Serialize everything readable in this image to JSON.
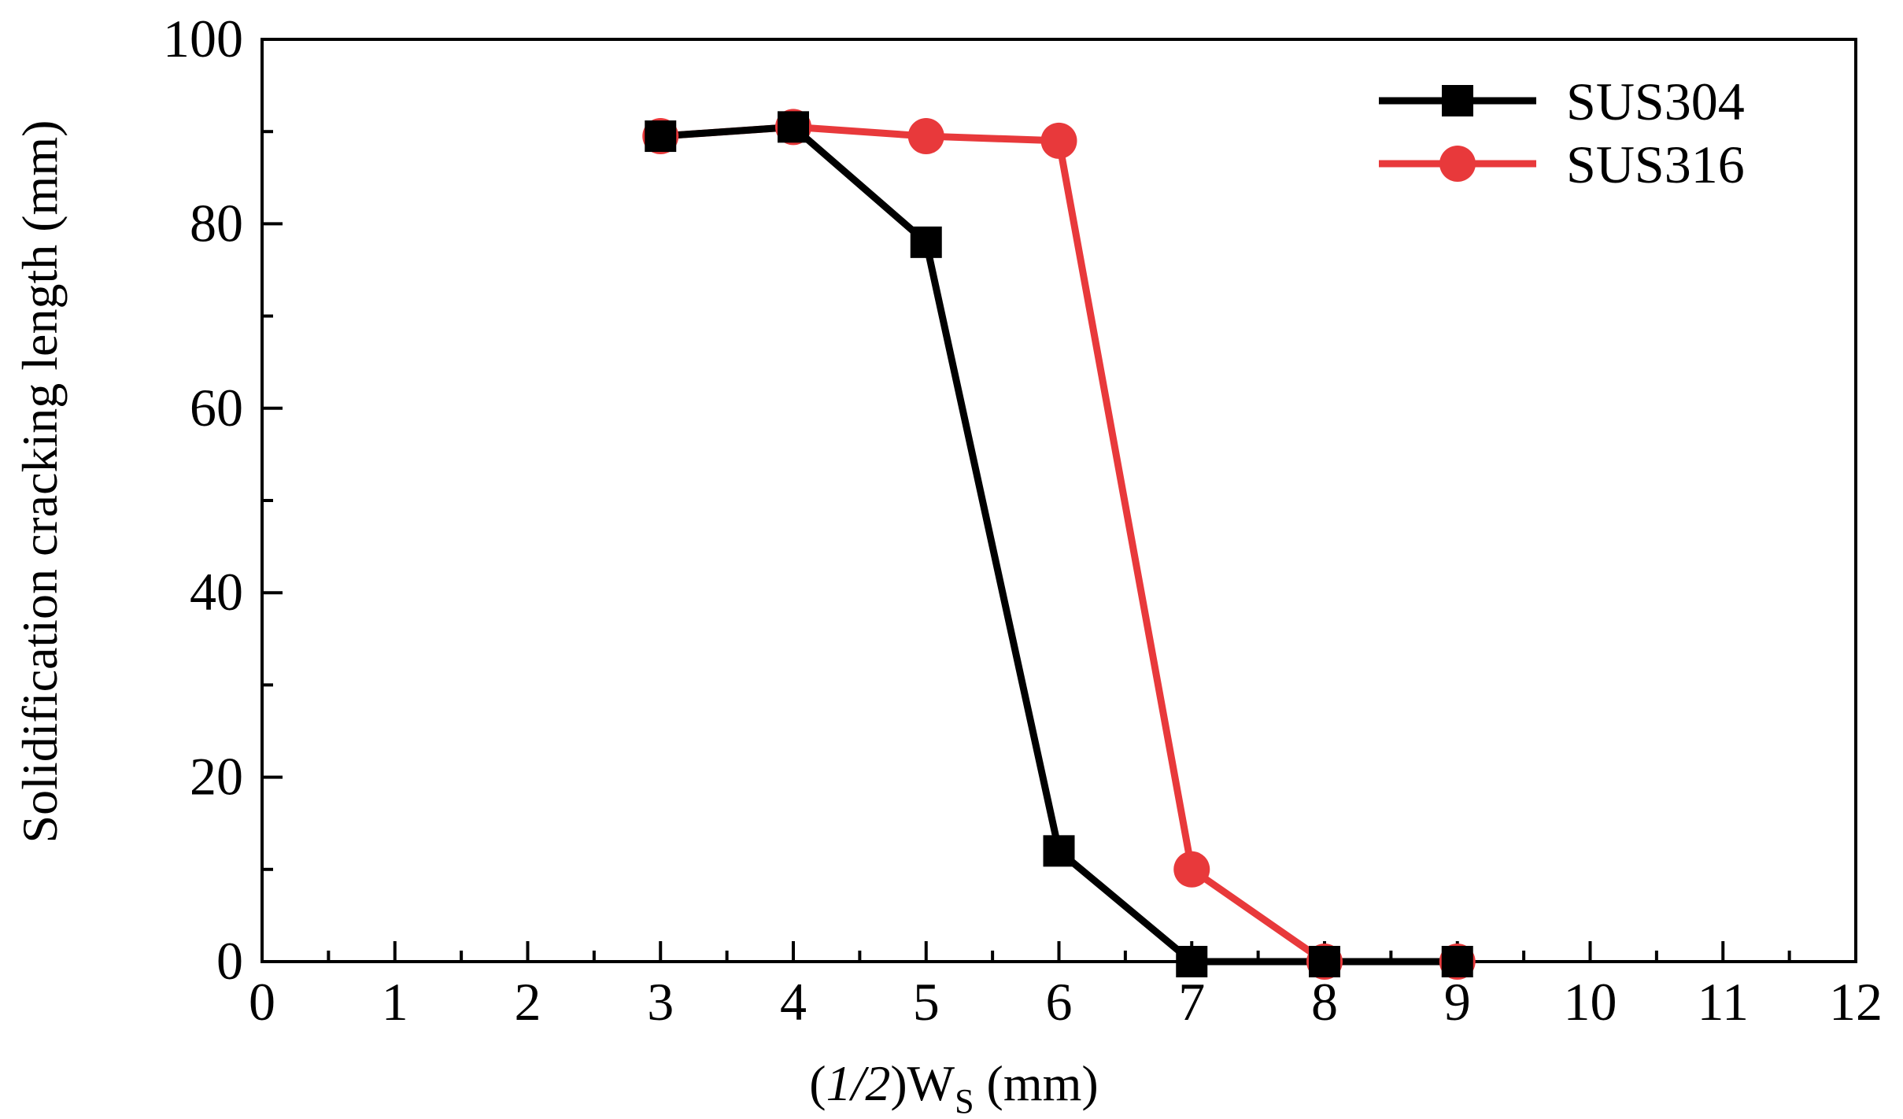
{
  "chart_data": {
    "type": "line",
    "title": "",
    "xlabel": {
      "open": "(",
      "italic": "1/2",
      "close": ")W",
      "subscript": "S",
      "unit": " (mm)"
    },
    "ylabel": "Solidification cracking length (mm)",
    "xlim": [
      0,
      12
    ],
    "ylim": [
      0,
      100
    ],
    "x_ticks": [
      "0",
      "1",
      "2",
      "3",
      "4",
      "5",
      "6",
      "7",
      "8",
      "9",
      "10",
      "11",
      "12"
    ],
    "y_ticks": [
      "0",
      "20",
      "40",
      "60",
      "80",
      "100"
    ],
    "x_tick_values": [
      0,
      1,
      2,
      3,
      4,
      5,
      6,
      7,
      8,
      9,
      10,
      11,
      12
    ],
    "y_tick_values": [
      0,
      20,
      40,
      60,
      80,
      100
    ],
    "legend_position": "top-right",
    "series": [
      {
        "name": "SUS304",
        "color": "#000000",
        "marker": "square",
        "x": [
          3,
          4,
          5,
          6,
          7,
          8,
          9
        ],
        "y": [
          89.5,
          90.5,
          78,
          12,
          0,
          0,
          0
        ]
      },
      {
        "name": "SUS316",
        "color": "#e8393b",
        "marker": "circle",
        "x": [
          3,
          4,
          5,
          6,
          7,
          8,
          9
        ],
        "y": [
          89.5,
          90.5,
          89.5,
          89,
          10,
          0,
          0
        ]
      }
    ]
  }
}
